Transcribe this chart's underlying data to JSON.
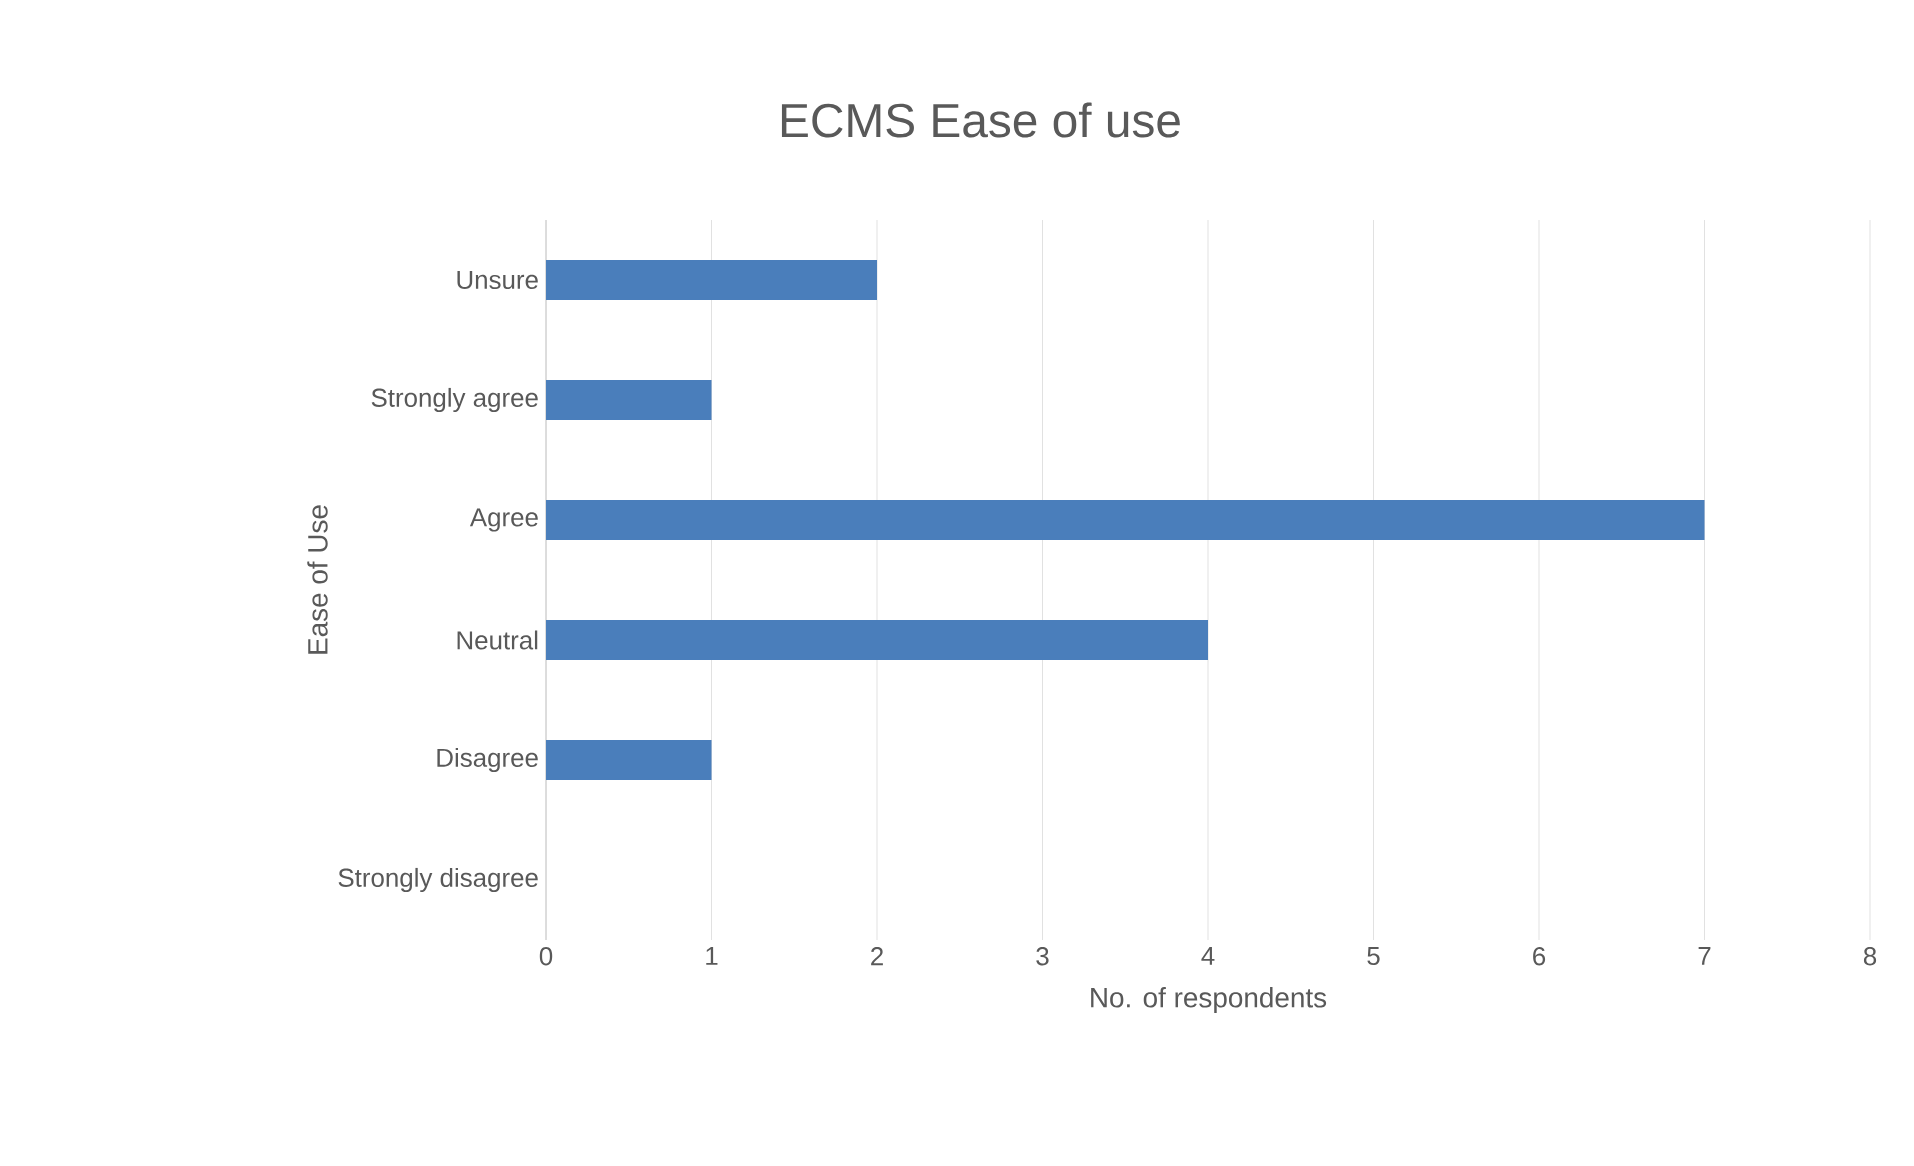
{
  "chart_data": {
    "type": "bar",
    "orientation": "horizontal",
    "title": "ECMS Ease of use",
    "xlabel": "No. of respondents",
    "ylabel": "Ease of Use",
    "categories": [
      "Unsure",
      "Strongly agree",
      "Agree",
      "Neutral",
      "Disagree",
      "Strongly disagree"
    ],
    "values": [
      2,
      1,
      7,
      4,
      1,
      0
    ],
    "color": "#4a7ebb",
    "xlim": [
      0,
      8
    ],
    "xticks": [
      0,
      1,
      2,
      3,
      4,
      5,
      6,
      7,
      8
    ],
    "grid": "x"
  }
}
